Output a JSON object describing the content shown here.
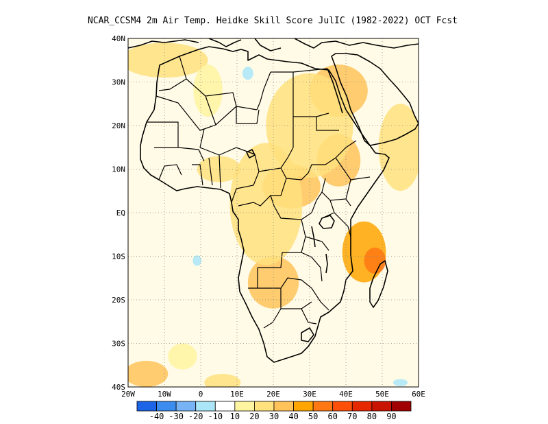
{
  "title": "NCAR_CCSM4  2m Air Temp. Heidke Skill Score JulIC (1982-2022) OCT Fcst",
  "map": {
    "lon_range": [
      -20,
      60
    ],
    "lat_range": [
      -40,
      40
    ],
    "lon_ticks": [
      {
        "value": -20,
        "label": "20W"
      },
      {
        "value": -10,
        "label": "10W"
      },
      {
        "value": 0,
        "label": "0"
      },
      {
        "value": 10,
        "label": "10E"
      },
      {
        "value": 20,
        "label": "20E"
      },
      {
        "value": 30,
        "label": "30E"
      },
      {
        "value": 40,
        "label": "40E"
      },
      {
        "value": 50,
        "label": "50E"
      },
      {
        "value": 60,
        "label": "60E"
      }
    ],
    "lat_ticks": [
      {
        "value": 40,
        "label": "40N"
      },
      {
        "value": 30,
        "label": "30N"
      },
      {
        "value": 20,
        "label": "20N"
      },
      {
        "value": 10,
        "label": "10N"
      },
      {
        "value": 0,
        "label": "EQ"
      },
      {
        "value": -10,
        "label": "10S"
      },
      {
        "value": -20,
        "label": "20S"
      },
      {
        "value": -30,
        "label": "30S"
      },
      {
        "value": -40,
        "label": "40S"
      }
    ],
    "grid": "dotted"
  },
  "colorbar": {
    "colors": [
      "#1e64e6",
      "#3c8cf0",
      "#78b4f5",
      "#aae6f8",
      "#ffffff",
      "#fff5a0",
      "#ffe17d",
      "#ffc35a",
      "#ffa500",
      "#ff7814",
      "#ff500a",
      "#e62800",
      "#c81400",
      "#a00000"
    ],
    "labels": [
      "-40",
      "-30",
      "-20",
      "-10",
      "10",
      "20",
      "30",
      "40",
      "50",
      "60",
      "70",
      "80",
      "90"
    ]
  },
  "fill_patches": [
    {
      "lon": 38,
      "lat": 28,
      "rx": 8,
      "ry": 6,
      "level": 30
    },
    {
      "lon": 45,
      "lat": -9,
      "rx": 6,
      "ry": 7,
      "level": 40
    },
    {
      "lon": 48,
      "lat": -11,
      "rx": 3,
      "ry": 3,
      "level": 50
    },
    {
      "lon": -15,
      "lat": -37,
      "rx": 6,
      "ry": 3,
      "level": 30
    },
    {
      "lon": 20,
      "lat": -16,
      "rx": 7,
      "ry": 6,
      "level": 30
    },
    {
      "lon": 25,
      "lat": 6,
      "rx": 8,
      "ry": 5,
      "level": 30
    },
    {
      "lon": 38,
      "lat": 12,
      "rx": 6,
      "ry": 6,
      "level": 30
    },
    {
      "lon": 18,
      "lat": 2,
      "rx": 10,
      "ry": 14,
      "level": 20
    },
    {
      "lon": 30,
      "lat": 20,
      "rx": 12,
      "ry": 12,
      "level": 20
    },
    {
      "lon": -10,
      "lat": 35,
      "rx": 12,
      "ry": 4,
      "level": 20
    },
    {
      "lon": 55,
      "lat": 15,
      "rx": 6,
      "ry": 10,
      "level": 20
    },
    {
      "lon": 6,
      "lat": -39,
      "rx": 5,
      "ry": 2,
      "level": 20
    },
    {
      "lon": 2,
      "lat": 28,
      "rx": 4,
      "ry": 6,
      "level": 10
    },
    {
      "lon": 5,
      "lat": 10,
      "rx": 6,
      "ry": 3,
      "level": 20
    },
    {
      "lon": -5,
      "lat": -33,
      "rx": 4,
      "ry": 3,
      "level": 10
    },
    {
      "lon": 13,
      "lat": 32,
      "rx": 1.5,
      "ry": 1.5,
      "level": -10
    },
    {
      "lon": -1,
      "lat": -11,
      "rx": 1.2,
      "ry": 1.2,
      "level": -10
    },
    {
      "lon": 55,
      "lat": -39,
      "rx": 2,
      "ry": 0.8,
      "level": -10
    }
  ]
}
